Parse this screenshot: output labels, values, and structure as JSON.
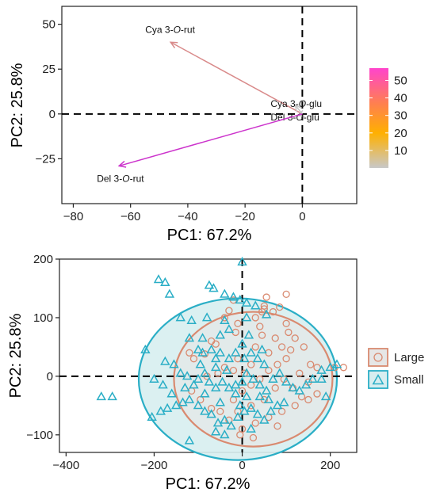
{
  "chart_data": [
    {
      "type": "biplot",
      "xlabel": "PC1: 67.2%",
      "ylabel": "PC2: 25.8%",
      "xlim": [
        -84,
        19
      ],
      "ylim": [
        -50,
        60
      ],
      "xticks": [
        -80,
        -60,
        -40,
        -20,
        0
      ],
      "yticks": [
        -25,
        0,
        25,
        50
      ],
      "xtick_labels": [
        "−80",
        "−60",
        "−40",
        "−20",
        "0"
      ],
      "ytick_labels": [
        "−25",
        "0",
        "25",
        "50"
      ],
      "reference_lines": {
        "x": 0,
        "y": 0,
        "style": "dashed"
      },
      "vectors": [
        {
          "label_main": "Cya 3-",
          "label_italic": "O",
          "label_tail": "-rut",
          "x": -46,
          "y": 40,
          "contrib": 22,
          "color": "#d98a8a"
        },
        {
          "label_main": "Cya 3-",
          "label_italic": "O",
          "label_tail": "-glu",
          "x": -2.5,
          "y": 5,
          "contrib": 2,
          "color": "#c8c8c8"
        },
        {
          "label_main": "Del 3-",
          "label_italic": "O",
          "label_tail": "-glu",
          "x": -1.5,
          "y": -1,
          "contrib": 1,
          "color": "#c8c8c8"
        },
        {
          "label_main": "Del 3-",
          "label_italic": "O",
          "label_tail": "-rut",
          "x": -64,
          "y": -29,
          "contrib": 52,
          "color": "#cc33cc"
        }
      ],
      "colorbar": {
        "ticks": [
          10,
          20,
          30,
          40,
          50
        ],
        "range": [
          0,
          57
        ],
        "colors": [
          "#c8c8c8",
          "#ffb000",
          "#ff7f50",
          "#ff44cc"
        ]
      },
      "grid": false
    },
    {
      "type": "scatter",
      "xlabel": "PC1: 67.2%",
      "ylabel": "PC2: 25.8%",
      "xlim": [
        -415,
        260
      ],
      "ylim": [
        -130,
        200
      ],
      "xticks": [
        -400,
        -200,
        0,
        200
      ],
      "yticks": [
        -100,
        0,
        100,
        200
      ],
      "xtick_labels": [
        "−400",
        "−200",
        "0",
        "200"
      ],
      "ytick_labels": [
        "−100",
        "0",
        "100",
        "200"
      ],
      "reference_lines": {
        "x": 0,
        "y": 0,
        "style": "dashed"
      },
      "legend_position": "right",
      "series": [
        {
          "name": "Large",
          "marker": "circle",
          "color": "#d98a70",
          "ellipse": {
            "cx": 25,
            "cy": -5,
            "rx": 180,
            "ry": 115,
            "fill": "#e6e6e6"
          },
          "points": [
            [
              -30,
              112
            ],
            [
              30,
              100
            ],
            [
              55,
              135
            ],
            [
              50,
              115
            ],
            [
              -40,
              100
            ],
            [
              -10,
              90
            ],
            [
              -20,
              130
            ],
            [
              100,
              140
            ],
            [
              50,
              120
            ],
            [
              70,
              110
            ],
            [
              85,
              118
            ],
            [
              40,
              85
            ],
            [
              -70,
              60
            ],
            [
              -60,
              55
            ],
            [
              -85,
              38
            ],
            [
              -110,
              30
            ],
            [
              -10,
              30
            ],
            [
              30,
              50
            ],
            [
              45,
              70
            ],
            [
              75,
              65
            ],
            [
              100,
              90
            ],
            [
              120,
              65
            ],
            [
              90,
              50
            ],
            [
              110,
              45
            ],
            [
              140,
              50
            ],
            [
              170,
              15
            ],
            [
              210,
              15
            ],
            [
              230,
              15
            ],
            [
              155,
              20
            ],
            [
              60,
              40
            ],
            [
              20,
              20
            ],
            [
              5,
              5
            ],
            [
              -20,
              10
            ],
            [
              -40,
              15
            ],
            [
              -55,
              5
            ],
            [
              -80,
              0
            ],
            [
              -115,
              -25
            ],
            [
              -95,
              -40
            ],
            [
              -70,
              -55
            ],
            [
              -20,
              -40
            ],
            [
              0,
              -25
            ],
            [
              20,
              -15
            ],
            [
              40,
              -5
            ],
            [
              60,
              10
            ],
            [
              80,
              20
            ],
            [
              100,
              30
            ],
            [
              130,
              5
            ],
            [
              150,
              -10
            ],
            [
              170,
              -30
            ],
            [
              150,
              -40
            ],
            [
              120,
              -50
            ],
            [
              90,
              -60
            ],
            [
              60,
              -70
            ],
            [
              30,
              -80
            ],
            [
              0,
              -90
            ],
            [
              -30,
              -75
            ],
            [
              -50,
              -60
            ],
            [
              -10,
              -60
            ],
            [
              20,
              -50
            ],
            [
              50,
              -40
            ],
            [
              75,
              -20
            ],
            [
              95,
              -5
            ],
            [
              115,
              -20
            ],
            [
              135,
              -35
            ],
            [
              25,
              -105
            ],
            [
              -5,
              -100
            ],
            [
              80,
              -85
            ],
            [
              -15,
              75
            ],
            [
              45,
              110
            ],
            [
              105,
              75
            ],
            [
              -120,
              40
            ]
          ]
        },
        {
          "name": "Small",
          "marker": "triangle",
          "color": "#2aaec6",
          "ellipse": {
            "cx": -10,
            "cy": -5,
            "rx": 225,
            "ry": 138,
            "fill": "#d7eef0"
          },
          "points": [
            [
              0,
              195
            ],
            [
              -190,
              165
            ],
            [
              -175,
              160
            ],
            [
              -165,
              140
            ],
            [
              -75,
              155
            ],
            [
              -65,
              150
            ],
            [
              -40,
              140
            ],
            [
              -20,
              135
            ],
            [
              -5,
              130
            ],
            [
              10,
              125
            ],
            [
              30,
              120
            ],
            [
              55,
              105
            ],
            [
              10,
              100
            ],
            [
              -140,
              100
            ],
            [
              -115,
              95
            ],
            [
              -80,
              100
            ],
            [
              -40,
              95
            ],
            [
              -30,
              80
            ],
            [
              -50,
              70
            ],
            [
              -90,
              65
            ],
            [
              -120,
              65
            ],
            [
              -100,
              45
            ],
            [
              -90,
              40
            ],
            [
              -70,
              45
            ],
            [
              -60,
              30
            ],
            [
              -50,
              40
            ],
            [
              -30,
              30
            ],
            [
              -15,
              40
            ],
            [
              0,
              55
            ],
            [
              5,
              30
            ],
            [
              20,
              40
            ],
            [
              35,
              30
            ],
            [
              50,
              20
            ],
            [
              -220,
              45
            ],
            [
              -175,
              25
            ],
            [
              -155,
              20
            ],
            [
              -140,
              5
            ],
            [
              -125,
              0
            ],
            [
              -110,
              -15
            ],
            [
              -100,
              -5
            ],
            [
              -85,
              5
            ],
            [
              -75,
              -10
            ],
            [
              -60,
              -20
            ],
            [
              -45,
              -10
            ],
            [
              -30,
              -20
            ],
            [
              -15,
              -30
            ],
            [
              0,
              -10
            ],
            [
              10,
              5
            ],
            [
              25,
              -5
            ],
            [
              40,
              -15
            ],
            [
              55,
              -25
            ],
            [
              70,
              -5
            ],
            [
              85,
              5
            ],
            [
              100,
              -10
            ],
            [
              115,
              -20
            ],
            [
              130,
              -25
            ],
            [
              145,
              -15
            ],
            [
              160,
              -5
            ],
            [
              180,
              10
            ],
            [
              200,
              15
            ],
            [
              215,
              20
            ],
            [
              180,
              -5
            ],
            [
              190,
              -35
            ],
            [
              -320,
              -35
            ],
            [
              -295,
              -35
            ],
            [
              -205,
              -70
            ],
            [
              -185,
              -60
            ],
            [
              -170,
              -55
            ],
            [
              -150,
              -50
            ],
            [
              -135,
              -45
            ],
            [
              -120,
              -40
            ],
            [
              -100,
              -50
            ],
            [
              -85,
              -60
            ],
            [
              -70,
              -65
            ],
            [
              -55,
              -80
            ],
            [
              -40,
              -75
            ],
            [
              -25,
              -85
            ],
            [
              -10,
              -70
            ],
            [
              5,
              -60
            ],
            [
              20,
              -55
            ],
            [
              35,
              -65
            ],
            [
              50,
              -75
            ],
            [
              65,
              -60
            ],
            [
              80,
              -50
            ],
            [
              95,
              -45
            ],
            [
              -120,
              -110
            ],
            [
              -60,
              -95
            ],
            [
              -40,
              -100
            ],
            [
              -130,
              -20
            ],
            [
              -160,
              -30
            ],
            [
              -180,
              -15
            ],
            [
              -200,
              -5
            ],
            [
              10,
              -35
            ],
            [
              -5,
              -50
            ],
            [
              60,
              -40
            ],
            [
              -85,
              -30
            ],
            [
              -50,
              -45
            ],
            [
              20,
              -90
            ],
            [
              -15,
              -15
            ],
            [
              45,
              45
            ],
            [
              -60,
              15
            ],
            [
              -35,
              10
            ],
            [
              -95,
              20
            ],
            [
              15,
              70
            ],
            [
              40,
              -35
            ]
          ]
        }
      ],
      "grid": false
    }
  ]
}
